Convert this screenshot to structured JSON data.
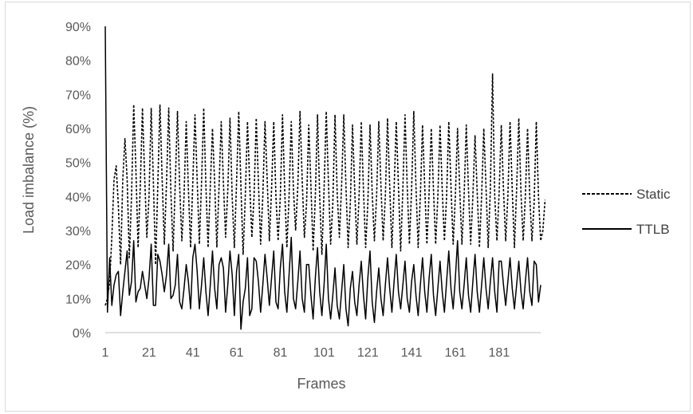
{
  "chart_data": {
    "type": "line",
    "title": "",
    "xlabel": "Frames",
    "ylabel": "Load imbalance (%)",
    "x_range": [
      1,
      200
    ],
    "ylim": [
      0,
      90
    ],
    "y_ticks": [
      "0%",
      "10%",
      "20%",
      "30%",
      "40%",
      "50%",
      "60%",
      "70%",
      "80%",
      "90%"
    ],
    "x_ticks": [
      "1",
      "21",
      "41",
      "61",
      "81",
      "101",
      "121",
      "141",
      "161",
      "181"
    ],
    "grid": false,
    "legend_position": "right",
    "series": [
      {
        "name": "Static",
        "style": "dashed",
        "color": "#000000",
        "values": [
          8,
          10,
          15,
          28,
          45,
          49,
          37,
          20,
          45,
          57,
          45,
          22,
          40,
          67,
          48,
          25,
          43,
          66,
          46,
          28,
          40,
          66,
          44,
          20,
          43,
          67,
          45,
          26,
          44,
          66,
          41,
          24,
          44,
          65,
          43,
          27,
          40,
          62,
          42,
          25,
          44,
          64,
          45,
          26,
          44,
          66,
          43,
          25,
          43,
          60,
          44,
          25,
          43,
          62,
          44,
          28,
          42,
          63,
          40,
          25,
          44,
          65,
          43,
          23,
          40,
          62,
          44,
          28,
          40,
          63,
          44,
          26,
          40,
          62,
          45,
          27,
          42,
          62,
          40,
          27,
          40,
          64,
          42,
          25,
          40,
          62,
          42,
          30,
          43,
          65,
          45,
          28,
          38,
          61,
          43,
          24,
          40,
          64,
          40,
          23,
          42,
          65,
          44,
          26,
          38,
          64,
          41,
          28,
          43,
          64,
          43,
          25,
          38,
          61,
          42,
          26,
          40,
          62,
          42,
          25,
          38,
          61,
          41,
          27,
          40,
          62,
          43,
          27,
          40,
          63,
          43,
          25,
          42,
          62,
          43,
          24,
          42,
          64,
          43,
          26,
          42,
          65,
          43,
          25,
          40,
          61,
          43,
          26,
          41,
          60,
          42,
          26,
          40,
          61,
          42,
          27,
          40,
          62,
          43,
          26,
          40,
          60,
          42,
          26,
          40,
          61,
          42,
          26,
          40,
          58,
          41,
          25,
          40,
          60,
          43,
          25,
          42,
          76,
          40,
          27,
          41,
          61,
          42,
          27,
          40,
          62,
          42,
          25,
          42,
          63,
          41,
          27,
          40,
          60,
          40,
          27,
          38,
          62,
          40,
          27,
          30,
          39
        ]
      },
      {
        "name": "TTLB",
        "style": "solid",
        "color": "#000000",
        "values": [
          90,
          6,
          22,
          8,
          14,
          17,
          18,
          5,
          12,
          18,
          24,
          11,
          15,
          27,
          9,
          12,
          13,
          18,
          14,
          10,
          16,
          26,
          8,
          8,
          23,
          21,
          17,
          12,
          17,
          26,
          10,
          11,
          14,
          23,
          9,
          7,
          13,
          20,
          15,
          7,
          22,
          26,
          18,
          7,
          14,
          22,
          12,
          5,
          14,
          24,
          13,
          7,
          20,
          22,
          19,
          6,
          14,
          24,
          17,
          5,
          18,
          23,
          1,
          9,
          13,
          22,
          5,
          7,
          22,
          21,
          15,
          6,
          14,
          23,
          16,
          8,
          16,
          24,
          9,
          7,
          19,
          26,
          12,
          6,
          17,
          28,
          10,
          7,
          15,
          24,
          10,
          6,
          20,
          20,
          11,
          4,
          16,
          25,
          12,
          5,
          14,
          26,
          10,
          4,
          11,
          19,
          8,
          4,
          12,
          20,
          7,
          2,
          13,
          18,
          9,
          5,
          14,
          21,
          11,
          4,
          16,
          24,
          9,
          3,
          12,
          19,
          10,
          5,
          14,
          22,
          13,
          6,
          15,
          23,
          12,
          7,
          14,
          21,
          10,
          6,
          15,
          20,
          11,
          5,
          14,
          22,
          12,
          6,
          16,
          23,
          11,
          5,
          13,
          21,
          12,
          6,
          15,
          24,
          13,
          7,
          16,
          27,
          12,
          7,
          14,
          22,
          11,
          6,
          15,
          23,
          12,
          6,
          14,
          22,
          13,
          7,
          15,
          22,
          12,
          6,
          21,
          21,
          14,
          8,
          15,
          22,
          13,
          7,
          14,
          21,
          12,
          7,
          15,
          22,
          12,
          8,
          21,
          20,
          9,
          14
        ]
      }
    ]
  }
}
